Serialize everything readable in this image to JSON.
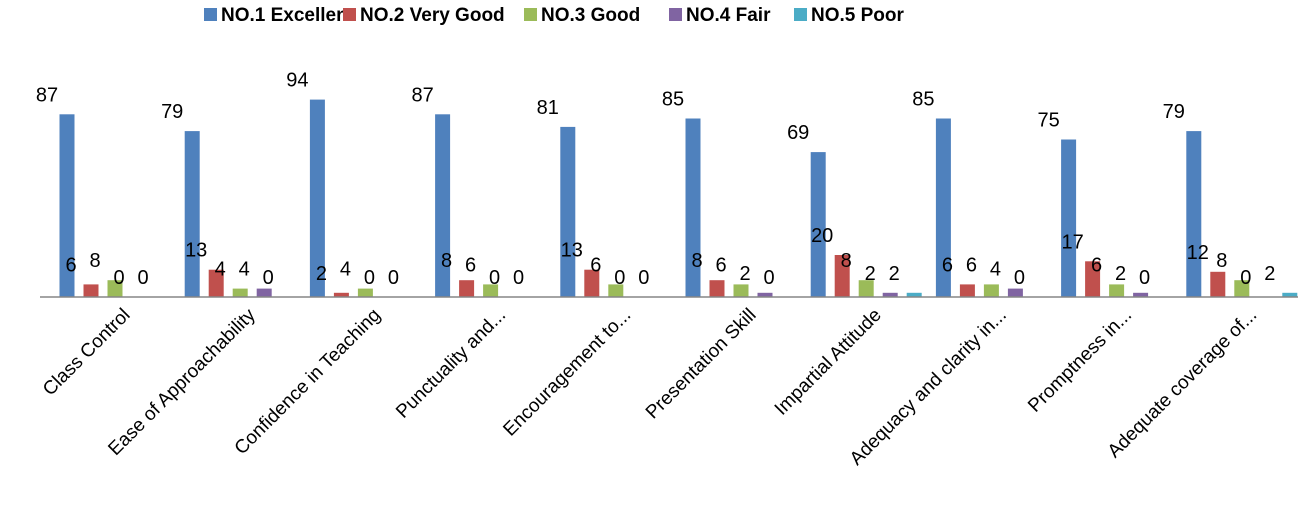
{
  "chart_data": {
    "type": "bar",
    "title": "",
    "xlabel": "",
    "ylabel": "",
    "ylim": [
      0,
      100
    ],
    "grid": false,
    "legend_position": "top",
    "categories": [
      "Class Control",
      "Ease of Approachability",
      "Confidence in Teaching",
      "Punctuality and...",
      "Encouragement to...",
      "Presentation Skill",
      "Impartial Attitude",
      "Adequacy and clarity in...",
      "Promptness in...",
      "Adequate coverage of..."
    ],
    "series": [
      {
        "name": "NO.1 Excellent",
        "color": "#4F81BD",
        "values": [
          87,
          79,
          94,
          87,
          81,
          85,
          69,
          85,
          75,
          79
        ]
      },
      {
        "name": "NO.2 Very Good",
        "color": "#C0504D",
        "values": [
          6,
          13,
          2,
          8,
          13,
          8,
          20,
          6,
          17,
          12
        ]
      },
      {
        "name": "NO.3 Good",
        "color": "#9BBB59",
        "values": [
          8,
          4,
          4,
          6,
          6,
          6,
          8,
          6,
          6,
          8
        ]
      },
      {
        "name": "NO.4 Fair",
        "color": "#8064A2",
        "values": [
          0,
          4,
          0,
          0,
          0,
          2,
          2,
          4,
          2,
          0
        ]
      },
      {
        "name": "NO.5 Poor",
        "color": "#4BACC6",
        "values": [
          0,
          0,
          0,
          0,
          0,
          0,
          2,
          0,
          0,
          2
        ]
      }
    ]
  }
}
